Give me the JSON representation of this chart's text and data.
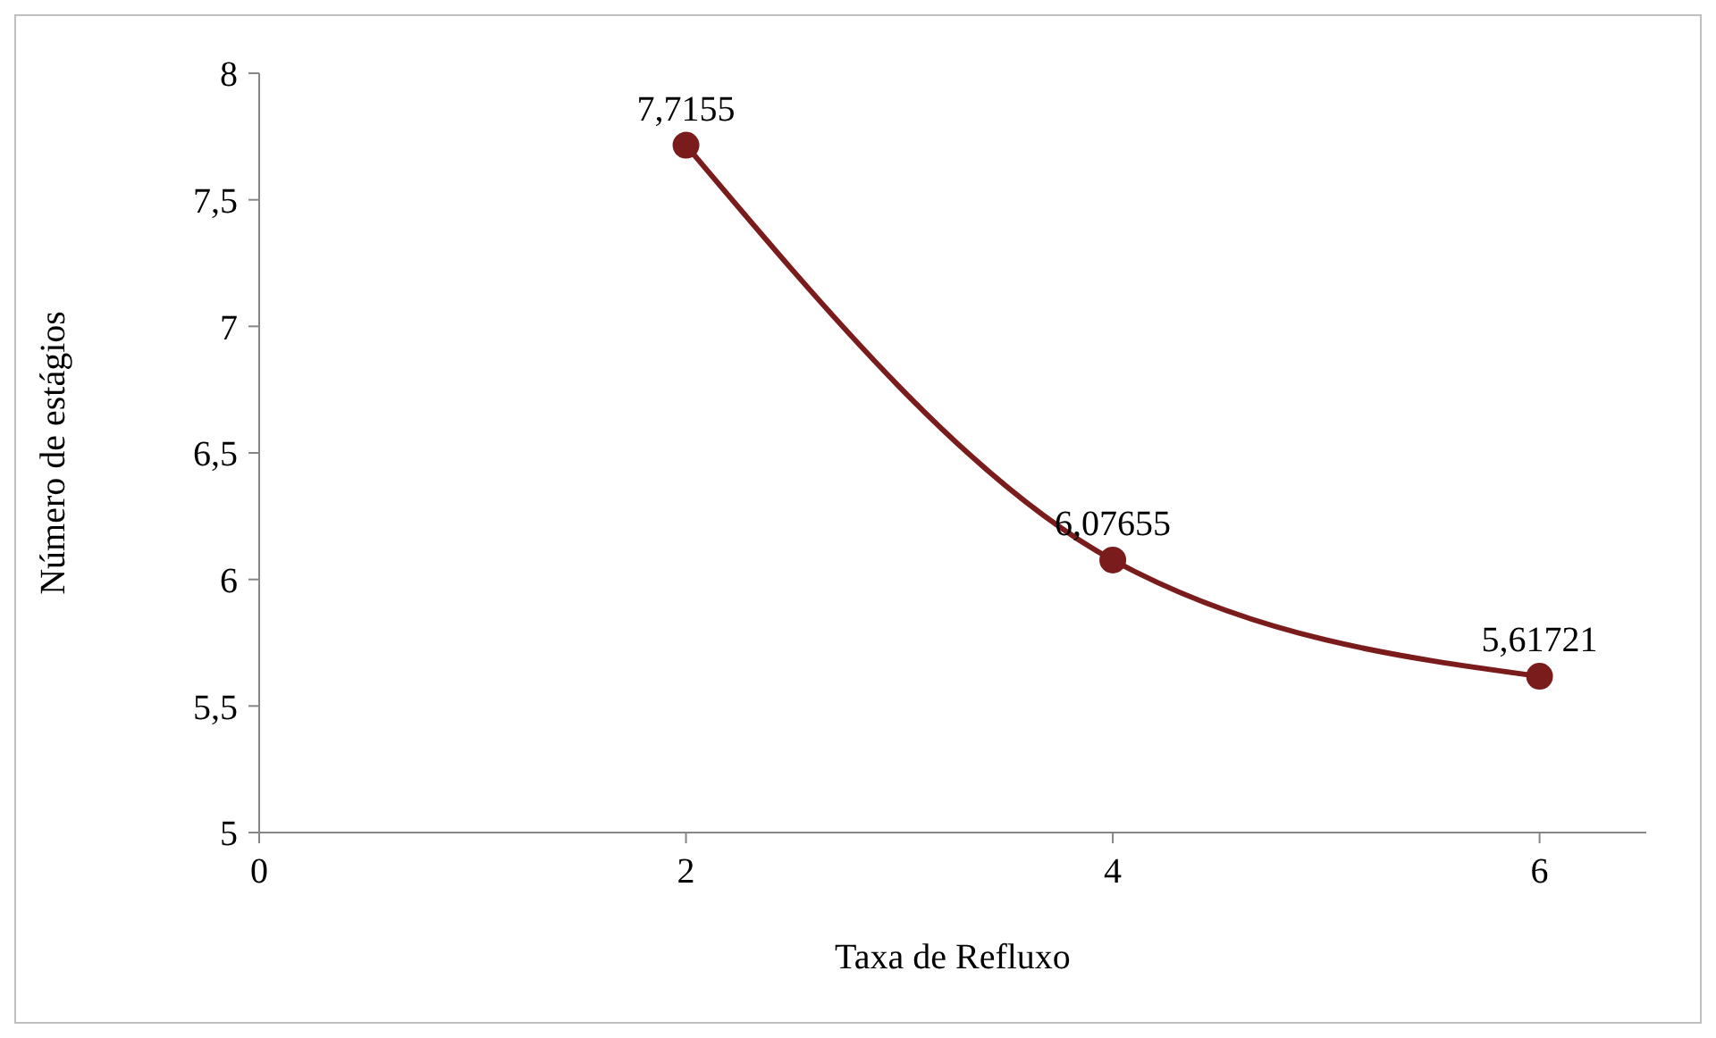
{
  "chart_data": {
    "type": "line",
    "xlabel": "Taxa de Refluxo",
    "ylabel": "Número de estágios",
    "x": [
      2,
      4,
      6
    ],
    "series": [
      {
        "color": "#7b1c1c",
        "values": [
          7.7155,
          6.07655,
          5.61721
        ],
        "value_labels": [
          "7,7155",
          "6,07655",
          "5,61721"
        ]
      }
    ],
    "xlim": [
      0,
      6.5
    ],
    "xticks": [
      0,
      2,
      4,
      6
    ],
    "ylim": [
      5,
      8
    ],
    "yticks": [
      5,
      {
        "value": 5.5,
        "label": "5,5"
      },
      6,
      {
        "value": 6.5,
        "label": "6,5"
      },
      7,
      {
        "value": 7.5,
        "label": "7,5"
      },
      8
    ],
    "grid": false,
    "legend": false,
    "marker": "circle",
    "line_style": "solid"
  }
}
